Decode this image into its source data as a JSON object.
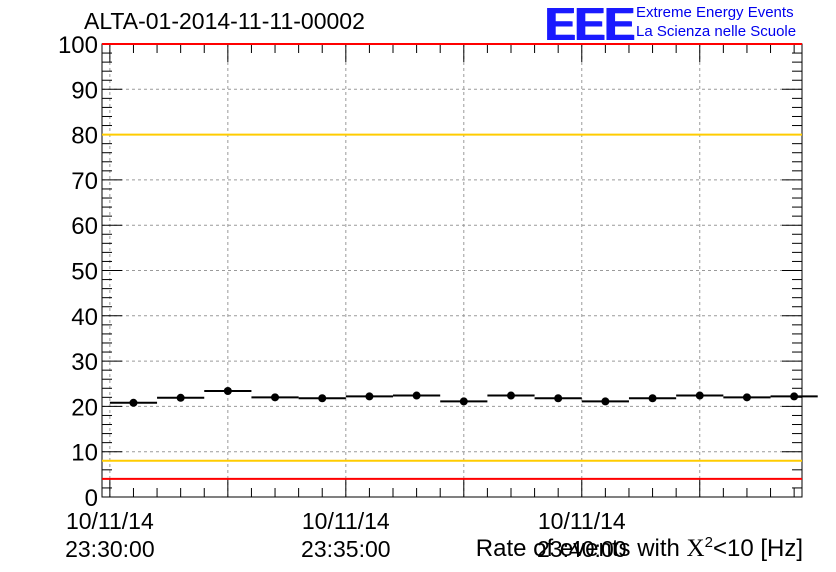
{
  "title": "ALTA-01-2014-11-11-00002",
  "logo": {
    "mark": "EEE",
    "line1": "Extreme Energy Events",
    "line2": "La Scienza nelle Scuole"
  },
  "xlabel": {
    "prefix": "Rate of events with ",
    "symbol": "X",
    "exponent": "2",
    "suffix": "<10 [Hz]"
  },
  "chart_data": {
    "type": "scatter",
    "title": "ALTA-01-2014-11-11-00002",
    "xlabel": "Rate of events with X^2<10 [Hz]",
    "ylabel": "",
    "ylim": [
      0,
      100
    ],
    "yticks": [
      0,
      10,
      20,
      30,
      40,
      50,
      60,
      70,
      80,
      90,
      100
    ],
    "xlim": [
      "10/11/14 23:29:50",
      "10/11/14 23:44:40"
    ],
    "xtick_labels": [
      {
        "time": "10/11/14 23:30:00",
        "date": "10/11/14",
        "clock": "23:30:00"
      },
      {
        "time": "10/11/14 23:35:00",
        "date": "10/11/14",
        "clock": "23:35:00"
      },
      {
        "time": "10/11/14 23:40:00",
        "date": "10/11/14",
        "clock": "23:40:00"
      }
    ],
    "grid": true,
    "series": [
      {
        "x": [
          "23:30:00",
          "23:31:00",
          "23:32:00",
          "23:33:00",
          "23:34:00",
          "23:35:00",
          "23:36:00",
          "23:37:00",
          "23:38:00",
          "23:39:00",
          "23:40:00",
          "23:41:00",
          "23:42:00",
          "23:43:00",
          "23:44:00"
        ],
        "y": [
          20.8,
          21.9,
          23.4,
          22.0,
          21.8,
          22.2,
          22.4,
          21.1,
          22.4,
          21.8,
          21.1,
          21.8,
          22.4,
          22.0,
          22.2
        ],
        "color": "#000000"
      }
    ],
    "reference_lines": [
      {
        "y": 80,
        "color": "#ffcc00"
      },
      {
        "y": 8,
        "color": "#ffcc00"
      },
      {
        "y": 4,
        "color": "#ff0000"
      },
      {
        "y": 100,
        "color": "#ff0000"
      }
    ]
  }
}
